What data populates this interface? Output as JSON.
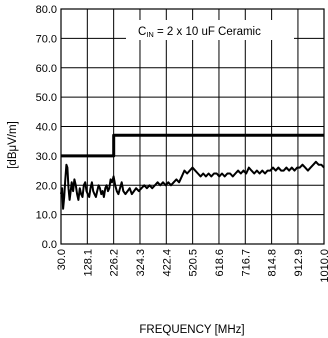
{
  "chart_data": {
    "type": "line",
    "annotation": {
      "prefix": "C",
      "subscript": "IN",
      "suffix": " = 2 x 10 uF Ceramic"
    },
    "xlabel": "FREQUENCY [MHz]",
    "ylabel": "[dBμV/m]",
    "xlim": [
      30.0,
      1010.0
    ],
    "ylim": [
      0,
      80
    ],
    "grid": true,
    "x_ticks": [
      "30.0",
      "128.1",
      "226.2",
      "324.3",
      "422.4",
      "520.5",
      "618.6",
      "716.7",
      "814.8",
      "912.9",
      "1010.0"
    ],
    "y_ticks": [
      "0.0",
      "10.0",
      "20.0",
      "30.0",
      "40.0",
      "50.0",
      "60.0",
      "70.0",
      "80.0"
    ],
    "series": [
      {
        "role": "limit",
        "x": [
          30,
          226.2,
          226.2,
          1010
        ],
        "y": [
          30,
          30,
          37,
          37
        ]
      },
      {
        "role": "emission",
        "x": [
          30,
          34,
          38,
          42,
          46,
          50,
          54,
          58,
          62,
          66,
          70,
          75,
          80,
          85,
          90,
          95,
          100,
          105,
          110,
          115,
          120,
          125,
          130,
          135,
          140,
          145,
          150,
          155,
          160,
          165,
          170,
          175,
          180,
          185,
          190,
          195,
          200,
          205,
          210,
          215,
          220,
          226,
          232,
          238,
          244,
          250,
          256,
          262,
          270,
          278,
          286,
          294,
          302,
          310,
          320,
          330,
          340,
          350,
          360,
          370,
          380,
          390,
          400,
          410,
          420,
          430,
          440,
          450,
          460,
          470,
          480,
          490,
          500,
          510,
          520,
          530,
          540,
          550,
          560,
          570,
          580,
          590,
          600,
          610,
          620,
          630,
          640,
          650,
          660,
          670,
          680,
          690,
          700,
          710,
          720,
          730,
          740,
          750,
          760,
          770,
          780,
          790,
          800,
          810,
          820,
          830,
          840,
          850,
          860,
          870,
          880,
          890,
          900,
          910,
          920,
          930,
          940,
          950,
          960,
          970,
          980,
          990,
          1000,
          1010
        ],
        "y": [
          17,
          19,
          12,
          16,
          22,
          27,
          26,
          19,
          15,
          18,
          21,
          18,
          22,
          20,
          17,
          15,
          19,
          17,
          16,
          20,
          21,
          18,
          17,
          16,
          19,
          21,
          18,
          17,
          16,
          18,
          20,
          19,
          17,
          18,
          16,
          19,
          20,
          18,
          19,
          22,
          21,
          23,
          20,
          18,
          17,
          19,
          21,
          18,
          17,
          18,
          19,
          17,
          18,
          19,
          18,
          19,
          20,
          19,
          20,
          19,
          20,
          21,
          20,
          21,
          20,
          21,
          20,
          21,
          22,
          21,
          23,
          25,
          24,
          25,
          26,
          25,
          24,
          23,
          24,
          23,
          24,
          23,
          24,
          24,
          23,
          24,
          23,
          24,
          24,
          23,
          24,
          25,
          24,
          25,
          24,
          26,
          25,
          24,
          25,
          24,
          25,
          24,
          25,
          25,
          26,
          25,
          26,
          25,
          25,
          26,
          25,
          26,
          25,
          26,
          26,
          27,
          26,
          25,
          26,
          27,
          28,
          27,
          27,
          26
        ]
      }
    ]
  }
}
